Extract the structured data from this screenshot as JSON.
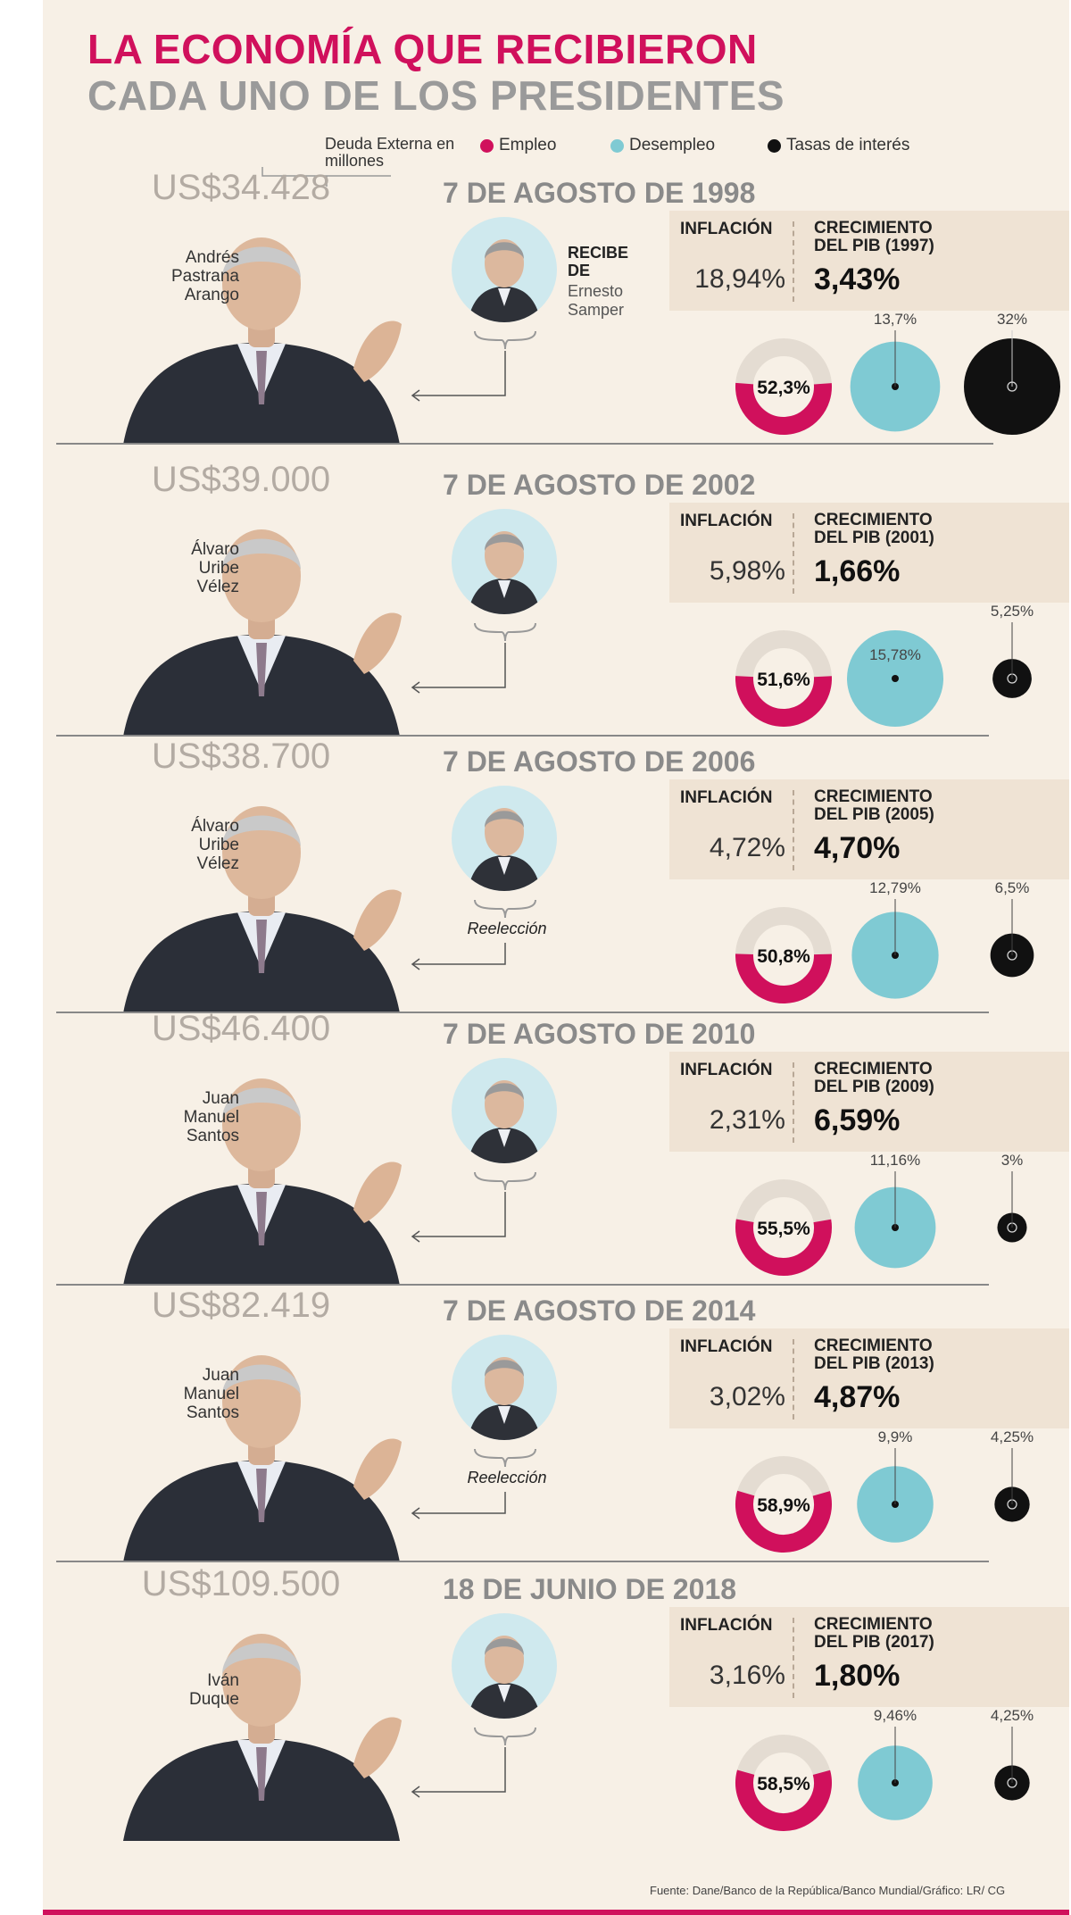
{
  "header": {
    "title_line1": "LA ECONOMÍA QUE RECIBIERON",
    "title_line2": "CADA UNO DE LOS PRESIDENTES"
  },
  "legend": {
    "debt_note": "Deuda Externa en millones",
    "items": [
      {
        "label": "Empleo",
        "color": "#d0105c"
      },
      {
        "label": "Desempleo",
        "color": "#7fcad3"
      },
      {
        "label": "Tasas de interés",
        "color": "#111111"
      }
    ]
  },
  "labels": {
    "inflation": "INFLACIÓN",
    "recibe": "RECIBE DE",
    "reelection": "Reelección"
  },
  "colors": {
    "empleo": "#d0105c",
    "empleo_track": "#e4dcd2",
    "desempleo": "#7fcad3",
    "tasas": "#111111",
    "title_accent": "#d0105c",
    "box_bg": "#efe3d4"
  },
  "sections": [
    {
      "debt": "US$34.428",
      "date": "7 DE AGOSTO DE 1998",
      "president": "Andrés\nPastrana\nArango",
      "received_from": "Ernesto\nSamper",
      "reelection": false,
      "inflation": "18,94%",
      "pib_label": "CRECIMIENTO\nDEL PIB (1997)",
      "pib_value": "3,43%",
      "empleo": "52,3%",
      "empleo_pct": 52.3,
      "desempleo": "13,7%",
      "desempleo_pct": 13.7,
      "tasa": "32%",
      "tasa_pct": 32
    },
    {
      "debt": "US$39.000",
      "date": "7 DE AGOSTO DE 2002",
      "president": "Álvaro\nUribe\nVélez",
      "received_from": "",
      "reelection": false,
      "inflation": "5,98%",
      "pib_label": "CRECIMIENTO\nDEL PIB (2001)",
      "pib_value": "1,66%",
      "empleo": "51,6%",
      "empleo_pct": 51.6,
      "desempleo": "15,78%",
      "desempleo_pct": 15.78,
      "tasa": "5,25%",
      "tasa_pct": 5.25
    },
    {
      "debt": "US$38.700",
      "date": "7 DE AGOSTO DE 2006",
      "president": "Álvaro\nUribe\nVélez",
      "received_from": "",
      "reelection": true,
      "inflation": "4,72%",
      "pib_label": "CRECIMIENTO\nDEL PIB (2005)",
      "pib_value": "4,70%",
      "empleo": "50,8%",
      "empleo_pct": 50.8,
      "desempleo": "12,79%",
      "desempleo_pct": 12.79,
      "tasa": "6,5%",
      "tasa_pct": 6.5
    },
    {
      "debt": "US$46.400",
      "date": "7 DE AGOSTO DE 2010",
      "president": "Juan\nManuel\nSantos",
      "received_from": "",
      "reelection": false,
      "inflation": "2,31%",
      "pib_label": "CRECIMIENTO\nDEL PIB (2009)",
      "pib_value": "6,59%",
      "empleo": "55,5%",
      "empleo_pct": 55.5,
      "desempleo": "11,16%",
      "desempleo_pct": 11.16,
      "tasa": "3%",
      "tasa_pct": 3
    },
    {
      "debt": "US$82.419",
      "date": "7 DE AGOSTO DE 2014",
      "president": "Juan\nManuel\nSantos",
      "received_from": "",
      "reelection": true,
      "inflation": "3,02%",
      "pib_label": "CRECIMIENTO\nDEL PIB (2013)",
      "pib_value": "4,87%",
      "empleo": "58,9%",
      "empleo_pct": 58.9,
      "desempleo": "9,9%",
      "desempleo_pct": 9.9,
      "tasa": "4,25%",
      "tasa_pct": 4.25
    },
    {
      "debt": "US$109.500",
      "date": "18 DE JUNIO DE 2018",
      "president": "Iván\nDuque",
      "received_from": "",
      "reelection": false,
      "inflation": "3,16%",
      "pib_label": "CRECIMIENTO\nDEL PIB (2017)",
      "pib_value": "1,80%",
      "empleo": "58,5%",
      "empleo_pct": 58.5,
      "desempleo": "9,46%",
      "desempleo_pct": 9.46,
      "tasa": "4,25%",
      "tasa_pct": 4.25
    }
  ],
  "footer": {
    "source": "Fuente: Dane/Banco de la República/Banco Mundial/Gráfico: LR/ CG"
  }
}
